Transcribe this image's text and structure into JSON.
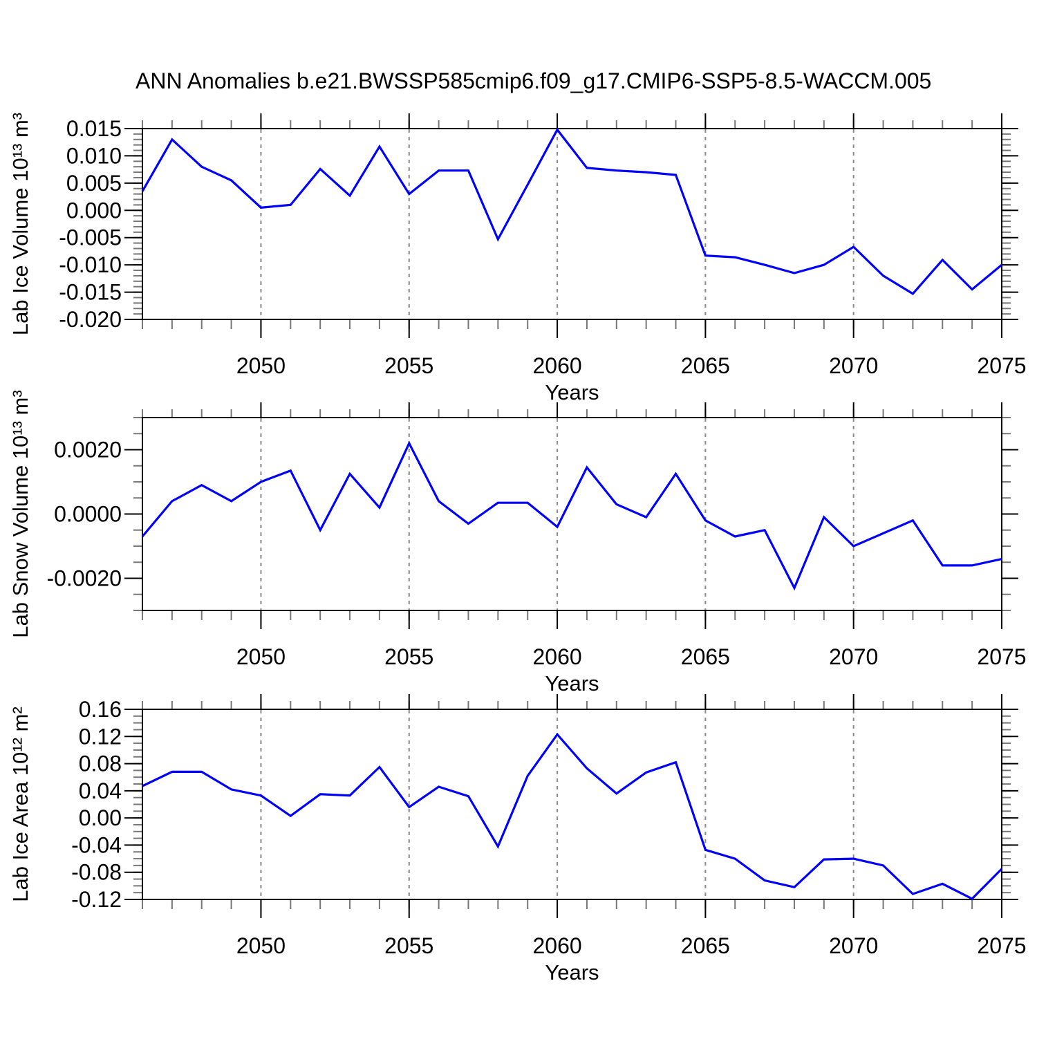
{
  "title": "ANN Anomalies b.e21.BWSSP585cmip6.f09_g17.CMIP6-SSP5-8.5-WACCM.005",
  "background_color": "#ffffff",
  "line_color": "#0000ff",
  "grid_color": "#8a8a8a",
  "axis_color": "#000000",
  "minor_tick_color": "#777777",
  "chart_data": [
    {
      "type": "line",
      "panel": "top",
      "ylabel": "Lab Ice Volume 10¹³ m³",
      "xlabel": "Years",
      "x": [
        2046,
        2047,
        2048,
        2049,
        2050,
        2051,
        2052,
        2053,
        2054,
        2055,
        2056,
        2057,
        2058,
        2059,
        2060,
        2061,
        2062,
        2063,
        2064,
        2065,
        2066,
        2067,
        2068,
        2069,
        2070,
        2071,
        2072,
        2073,
        2074,
        2075
      ],
      "values": [
        0.0035,
        0.013,
        0.008,
        0.0055,
        0.0005,
        0.001,
        0.0076,
        0.0027,
        0.0117,
        0.003,
        0.0073,
        0.0073,
        -0.0053,
        0.0047,
        0.0148,
        0.0078,
        0.0073,
        0.007,
        0.0065,
        -0.0083,
        -0.0086,
        -0.01,
        -0.0115,
        -0.01,
        -0.0067,
        -0.012,
        -0.0153,
        -0.0091,
        -0.0145,
        -0.01
      ],
      "ylim": [
        -0.02,
        0.015
      ],
      "yticks": [
        0.015,
        0.01,
        0.005,
        0.0,
        -0.005,
        -0.01,
        -0.015,
        -0.02
      ],
      "ytick_labels": [
        "0.015",
        "0.010",
        "0.005",
        "0.000",
        "-0.005",
        "-0.010",
        "-0.015",
        "-0.020"
      ],
      "yminor_step": 0.001,
      "xlim": [
        2046,
        2075
      ],
      "xticks": [
        2050,
        2055,
        2060,
        2065,
        2070,
        2075
      ],
      "xtick_labels": [
        "2050",
        "2055",
        "2060",
        "2065",
        "2070",
        "2075"
      ],
      "xminor_step": 1,
      "grid": "vertical-dashed"
    },
    {
      "type": "line",
      "panel": "middle",
      "ylabel": "Lab Snow Volume 10¹³ m³",
      "xlabel": "Years",
      "x": [
        2046,
        2047,
        2048,
        2049,
        2050,
        2051,
        2052,
        2053,
        2054,
        2055,
        2056,
        2057,
        2058,
        2059,
        2060,
        2061,
        2062,
        2063,
        2064,
        2065,
        2066,
        2067,
        2068,
        2069,
        2070,
        2071,
        2072,
        2073,
        2074,
        2075
      ],
      "values": [
        -0.0007,
        0.0004,
        0.0009,
        0.0004,
        0.001,
        0.00135,
        -0.0005,
        0.00125,
        0.0002,
        0.0022,
        0.0004,
        -0.0003,
        0.00035,
        0.00035,
        -0.0004,
        0.00145,
        0.0003,
        -0.0001,
        0.00125,
        -0.0002,
        -0.0007,
        -0.0005,
        -0.0023,
        -0.0001,
        -0.001,
        -0.0006,
        -0.0002,
        -0.0016,
        -0.0016,
        -0.0014
      ],
      "ylim": [
        -0.003,
        0.003
      ],
      "yticks": [
        0.002,
        0.0,
        -0.002
      ],
      "ytick_labels": [
        "0.0020",
        "0.0000",
        "-0.0020"
      ],
      "yminor_step": 0.0005,
      "xlim": [
        2046,
        2075
      ],
      "xticks": [
        2050,
        2055,
        2060,
        2065,
        2070,
        2075
      ],
      "xtick_labels": [
        "2050",
        "2055",
        "2060",
        "2065",
        "2070",
        "2075"
      ],
      "xminor_step": 1,
      "grid": "vertical-dashed"
    },
    {
      "type": "line",
      "panel": "bottom",
      "ylabel": "Lab Ice Area 10¹² m²",
      "xlabel": "Years",
      "x": [
        2046,
        2047,
        2048,
        2049,
        2050,
        2051,
        2052,
        2053,
        2054,
        2055,
        2056,
        2057,
        2058,
        2059,
        2060,
        2061,
        2062,
        2063,
        2064,
        2065,
        2066,
        2067,
        2068,
        2069,
        2070,
        2071,
        2072,
        2073,
        2074,
        2075
      ],
      "values": [
        0.047,
        0.068,
        0.068,
        0.042,
        0.033,
        0.003,
        0.035,
        0.033,
        0.075,
        0.016,
        0.046,
        0.032,
        -0.042,
        0.062,
        0.123,
        0.073,
        0.036,
        0.067,
        0.082,
        -0.047,
        -0.06,
        -0.092,
        -0.102,
        -0.061,
        -0.06,
        -0.07,
        -0.112,
        -0.097,
        -0.119,
        -0.075
      ],
      "ylim": [
        -0.12,
        0.16
      ],
      "yticks": [
        0.16,
        0.12,
        0.08,
        0.04,
        0.0,
        -0.04,
        -0.08,
        -0.12
      ],
      "ytick_labels": [
        "0.16",
        "0.12",
        "0.08",
        "0.04",
        "0.00",
        "-0.04",
        "-0.08",
        "-0.12"
      ],
      "yminor_step": 0.01,
      "xlim": [
        2046,
        2075
      ],
      "xticks": [
        2050,
        2055,
        2060,
        2065,
        2070,
        2075
      ],
      "xtick_labels": [
        "2050",
        "2055",
        "2060",
        "2065",
        "2070",
        "2075"
      ],
      "xminor_step": 1,
      "grid": "vertical-dashed"
    }
  ]
}
